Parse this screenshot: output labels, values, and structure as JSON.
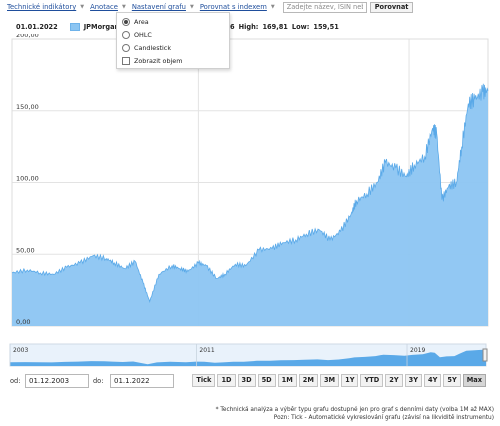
{
  "toolbar": {
    "technical_indicators": "Technické indikátory",
    "annotations": "Anotace",
    "chart_settings": "Nastavení grafu",
    "compare_index": "Porovnat s indexem",
    "isin_placeholder": "Zadejte název, ISIN nebo",
    "compare_button": "Porovnat"
  },
  "chart_type_menu": {
    "options": [
      {
        "label": "Area",
        "selected": true
      },
      {
        "label": "OHLC",
        "selected": false
      },
      {
        "label": "Candlestick",
        "selected": false
      }
    ],
    "volume_checkbox": {
      "label": "Zobrazit objem",
      "checked": false
    }
  },
  "info": {
    "date": "01.01.2022",
    "series": "JPMorgan Cha",
    "high_label": "High:",
    "high_value": "169,81",
    "low_label": "Low:",
    "low_value": "159,51",
    "partial_prefix": "6"
  },
  "chart_data": {
    "type": "area",
    "series_color": "#8cc5f2",
    "line_color": "#5aa9e8",
    "y_ticks": [
      "200,00",
      "150,00",
      "100,00",
      "50,00",
      "0,00"
    ],
    "ylim": [
      0,
      200
    ],
    "xlim": [
      2003.92,
      2022.0
    ],
    "x": [
      2003.92,
      2004.5,
      2005.0,
      2005.5,
      2006.0,
      2006.5,
      2007.0,
      2007.5,
      2007.8,
      2008.2,
      2008.6,
      2008.9,
      2009.15,
      2009.5,
      2010.0,
      2010.3,
      2010.6,
      2011.0,
      2011.3,
      2011.7,
      2012.0,
      2012.4,
      2012.8,
      2013.3,
      2013.8,
      2014.2,
      2014.7,
      2015.1,
      2015.6,
      2016.0,
      2016.4,
      2016.8,
      2017.0,
      2017.4,
      2017.8,
      2018.1,
      2018.5,
      2018.9,
      2019.2,
      2019.6,
      2019.9,
      2020.05,
      2020.25,
      2020.5,
      2020.8,
      2021.0,
      2021.25,
      2021.5,
      2021.8,
      2022.0
    ],
    "y": [
      37,
      39,
      37,
      36,
      41,
      44,
      49,
      47,
      44,
      40,
      45,
      30,
      17,
      36,
      42,
      40,
      38,
      44,
      42,
      33,
      36,
      43,
      42,
      53,
      54,
      58,
      60,
      64,
      67,
      60,
      66,
      78,
      87,
      92,
      100,
      114,
      110,
      104,
      112,
      118,
      138,
      134,
      88,
      97,
      100,
      125,
      155,
      158,
      163,
      164
    ],
    "nav_labels": [
      "2003",
      "2011",
      "2019"
    ],
    "nav_label_x": [
      2003.92,
      2011.0,
      2019.0
    ]
  },
  "range": {
    "from_label": "od:",
    "from_value": "01.12.2003",
    "to_label": "do:",
    "to_value": "01.1.2022"
  },
  "zoom_buttons": [
    "Tick",
    "1D",
    "3D",
    "5D",
    "1M",
    "2M",
    "3M",
    "1Y",
    "YTD",
    "2Y",
    "3Y",
    "4Y",
    "5Y",
    "Max"
  ],
  "zoom_active": "Max",
  "footnotes": {
    "line1": "* Technická analýza a výběr typu grafu dostupné jen pro graf s denními daty (volba 1M až MAX)",
    "line2": "Pozn: Tick - Automatické vykreslování grafu (závisí na likviditě instrumentu)"
  }
}
